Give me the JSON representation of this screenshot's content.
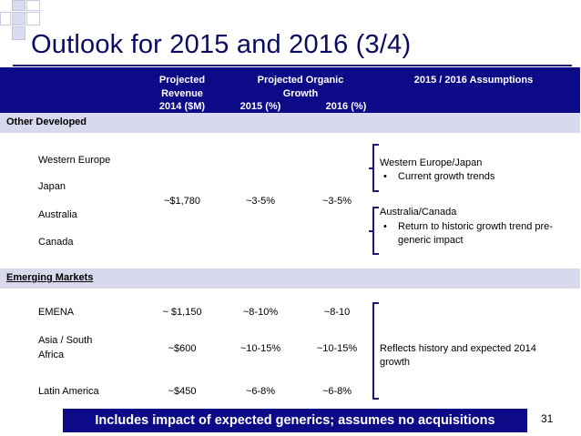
{
  "slide": {
    "title": "Outlook for 2015 and 2016 (3/4)",
    "page_number": "31",
    "banner": "Includes impact of expected generics; assumes no acquisitions"
  },
  "header": {
    "revenue_line1": "Projected",
    "revenue_line2": "Revenue",
    "revenue_line3": "2014 ($M)",
    "growth_line1": "Projected Organic",
    "growth_line2": "Growth",
    "growth_2015": "2015 (%)",
    "growth_2016": "2016 (%)",
    "assumptions": "2015 / 2016 Assumptions"
  },
  "other_developed": {
    "label": "Other Developed",
    "regions": [
      "Western Europe",
      "Japan",
      "Australia",
      "Canada"
    ],
    "revenue": "~$1,780",
    "growth_2015": "~3-5%",
    "growth_2016": "~3-5%",
    "assumption_1_title": "Western Europe/Japan",
    "assumption_1_bullet": "Current growth trends",
    "assumption_2_title": "Australia/Canada",
    "assumption_2_bullet_line1": "Return to historic growth trend pre-",
    "assumption_2_bullet_line2": "generic impact"
  },
  "emerging_markets": {
    "label": "Emerging Markets",
    "rows": [
      {
        "region": "EMENA",
        "revenue": "~ $1,150",
        "growth_2015": "~8-10%",
        "growth_2016": "~8-10"
      },
      {
        "region_line1": "Asia / South",
        "region_line2": "Africa",
        "revenue": "~$600",
        "growth_2015": "~10-15%",
        "growth_2016": "~10-15%"
      },
      {
        "region": "Latin America",
        "revenue": "~$450",
        "growth_2015": "~6-8%",
        "growth_2016": "~6-8%"
      }
    ],
    "assumption_line1": "Reflects history and expected 2014",
    "assumption_line2": "growth"
  },
  "colors": {
    "header_bg": "#0c0a86",
    "section_bg": "#d9d9ee",
    "title": "#0b0b60"
  }
}
